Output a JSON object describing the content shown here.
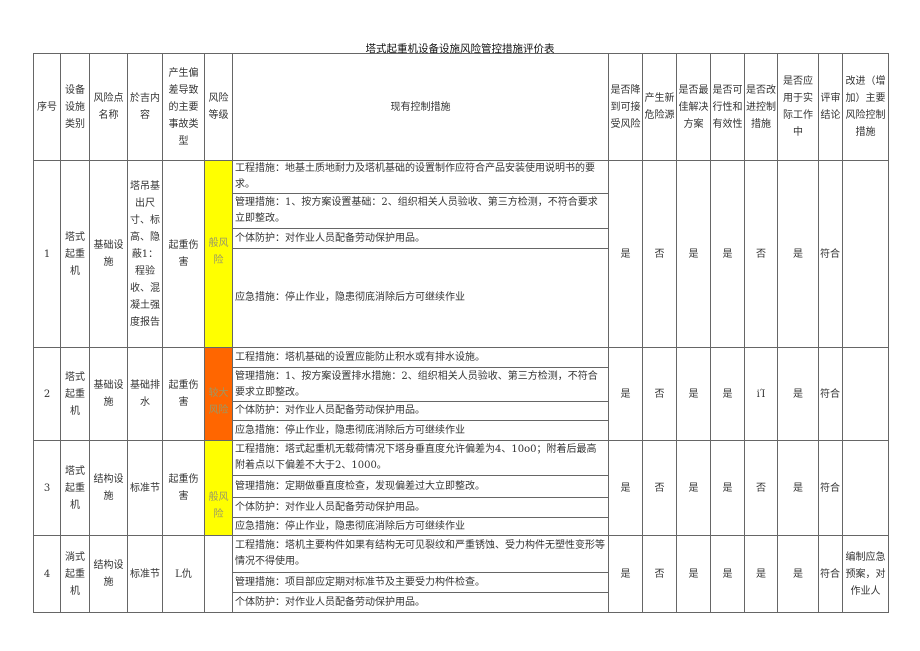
{
  "title": "塔式起重机设备设施风险管控措施评价表",
  "headers": [
    "序号",
    "设备设施类别",
    "风险点名称",
    "於吉内容",
    "产生偏差导致的主要事故类型",
    "风险等级",
    "现有控制措施",
    "是否降到可接受风险",
    "产生新危险源",
    "是否最佳解决方案",
    "是否可行性和有效性",
    "是否改进控制措施",
    "是否应用于实际工作中",
    "评审结论",
    "改进（增加）主要风险控制措施"
  ],
  "colors": {
    "yellow": "#ffff00",
    "orange": "#ff6600"
  },
  "rows": [
    {
      "no": "1",
      "category": "塔式起重机",
      "point": "基础设施",
      "content": "塔吊基出尺寸、标高、隐蔽1：程验收、混凝土强度报告",
      "accident": "起重伤害",
      "level": "般风险",
      "level_color": "#ffff00",
      "measures": [
        "工程措施：地基土质地耐力及塔机基础的设置制作应符合产品安装使用说明书的要求。",
        "管理措施：1、按方案设置基础：2、组织相关人员验收、第三方检测，不符合要求立即整改。",
        "个体防护：对作业人员配备劳动保护用品。",
        "应急措施：停止作业，隐患彻底消除后方可继续作业"
      ],
      "acceptable": "是",
      "new_hazard": "否",
      "best": "是",
      "feasible": "是",
      "improve": "否",
      "applied": "是",
      "conclusion": "符合",
      "extra": ""
    },
    {
      "no": "2",
      "category": "塔式起重机",
      "point": "基础设施",
      "content": "基础排水",
      "accident": "起重伤害",
      "level": "较大风险",
      "level_color": "#ff6600",
      "measures": [
        "工程措施：塔机基础的设置应能防止积水或有排水设施。",
        "管理措施：1、按方案设置排水措施：2、组织相关人员验收、第三方检测，不符合要求立即整改。",
        "个体防护：对作业人员配备劳动保护用品。",
        "应急措施：停止作业，隐患彻底消除后方可继续作业"
      ],
      "acceptable": "是",
      "new_hazard": "否",
      "best": "是",
      "feasible": "是",
      "improve": "iΊ",
      "applied": "是",
      "conclusion": "符合",
      "extra": ""
    },
    {
      "no": "3",
      "category": "塔式起重机",
      "point": "结构设施",
      "content": "标准节",
      "accident": "起重伤害",
      "level": "般风险",
      "level_color": "#ffff00",
      "measures": [
        "工程措施：塔式起重机无载荷情况下塔身垂直度允许偏差为4、10o0；附着后最高附着点以下偏差不大于2、1000。",
        "管理措施：定期做垂直度检查，发现偏差过大立即整改。",
        "个体防护：对作业人员配备劳动保护用品。",
        "应急措施：停止作业，隐患彻底消除后方可继续作业"
      ],
      "acceptable": "是",
      "new_hazard": "否",
      "best": "是",
      "feasible": "是",
      "improve": "否",
      "applied": "是",
      "conclusion": "符合",
      "extra": ""
    },
    {
      "no": "4",
      "category": "淌式起重机",
      "point": "结构设施",
      "content": "标准节",
      "accident": "L仇",
      "level": "",
      "level_color": "",
      "measures": [
        "工程措施：塔机主要构件如果有结构无可见裂纹和严重锈蚀、受力构件无塑性变形等情况不得使用。",
        "管理措施：项目部应定期对标准节及主要受力构件检查。",
        "个体防护：对作业人员配备劳动保护用品。"
      ],
      "acceptable": "是",
      "new_hazard": "否",
      "best": "是",
      "feasible": "是",
      "improve": "是",
      "applied": "是",
      "conclusion": "符合",
      "extra": "编制应急预案，对作业人"
    }
  ]
}
